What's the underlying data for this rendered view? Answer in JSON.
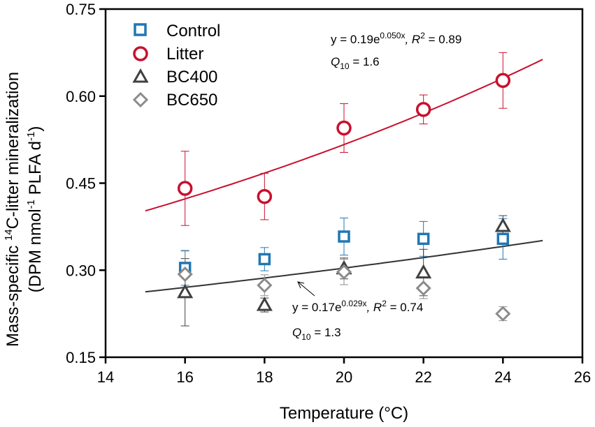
{
  "chart_data": {
    "type": "scatter",
    "xlabel": "Temperature (°C)",
    "ylabel_line1_pre": "Mass-specific ",
    "ylabel_line1_sup": "14",
    "ylabel_line1_post": "C-litter mineralization",
    "ylabel_line2_pre": "(DPM nmol",
    "ylabel_line2_sup1": "-1",
    "ylabel_line2_mid": " PLFA d",
    "ylabel_line2_sup2": "-1",
    "ylabel_line2_post": ")",
    "xlim": [
      14,
      26
    ],
    "ylim": [
      0.15,
      0.75
    ],
    "xticks": [
      14,
      16,
      18,
      20,
      22,
      24,
      26
    ],
    "yticks": [
      0.15,
      0.3,
      0.45,
      0.6,
      0.75
    ],
    "xtick_labels": [
      "14",
      "16",
      "18",
      "20",
      "22",
      "24",
      "26"
    ],
    "ytick_labels": [
      "0.15",
      "0.30",
      "0.45",
      "0.60",
      "0.75"
    ],
    "series": [
      {
        "name": "Control",
        "marker": "square",
        "color": "#1f77b4",
        "points": [
          {
            "x": 16,
            "y": 0.304,
            "err": 0.03
          },
          {
            "x": 18,
            "y": 0.319,
            "err": 0.02
          },
          {
            "x": 20,
            "y": 0.358,
            "err": 0.032
          },
          {
            "x": 22,
            "y": 0.354,
            "err": 0.03
          },
          {
            "x": 24,
            "y": 0.354,
            "err": 0.035
          }
        ]
      },
      {
        "name": "Litter",
        "marker": "circle",
        "color": "#c8102e",
        "points": [
          {
            "x": 16,
            "y": 0.441,
            "err": 0.064
          },
          {
            "x": 18,
            "y": 0.427,
            "err": 0.04
          },
          {
            "x": 20,
            "y": 0.545,
            "err": 0.042
          },
          {
            "x": 22,
            "y": 0.577,
            "err": 0.025
          },
          {
            "x": 24,
            "y": 0.627,
            "err": 0.048
          }
        ]
      },
      {
        "name": "BC400",
        "marker": "triangle",
        "color": "#404040",
        "points": [
          {
            "x": 16,
            "y": 0.262,
            "err": 0.058
          },
          {
            "x": 18,
            "y": 0.24,
            "err": 0.012
          },
          {
            "x": 20,
            "y": 0.303,
            "err": 0.018
          },
          {
            "x": 22,
            "y": 0.296,
            "err": 0.04
          },
          {
            "x": 24,
            "y": 0.376,
            "err": 0.018
          }
        ]
      },
      {
        "name": "BC650",
        "marker": "diamond",
        "color": "#8c8c8c",
        "points": [
          {
            "x": 16,
            "y": 0.293,
            "err": 0.04
          },
          {
            "x": 18,
            "y": 0.274,
            "err": 0.018
          },
          {
            "x": 20,
            "y": 0.297,
            "err": 0.022
          },
          {
            "x": 22,
            "y": 0.269,
            "err": 0.018
          },
          {
            "x": 24,
            "y": 0.225,
            "err": 0.012
          }
        ]
      }
    ],
    "fits": [
      {
        "name": "Litter fit",
        "color": "#c8102e",
        "a": 0.19,
        "b": 0.05,
        "x_range": [
          15,
          25
        ]
      },
      {
        "name": "Black-carbon fit",
        "color": "#333333",
        "a": 0.17,
        "b": 0.029,
        "x_range": [
          15,
          25
        ]
      }
    ],
    "annotations": {
      "litter_eq_pre": "y = 0.19e",
      "litter_eq_sup": "0.050x",
      "litter_eq_r": ", R",
      "litter_eq_r2sup": "2",
      "litter_eq_val": " = 0.89",
      "litter_q10_pre": "Q",
      "litter_q10_sub": "10",
      "litter_q10_val": " = 1.6",
      "bc_eq_pre": "y = 0.17e",
      "bc_eq_sup": "0.029x",
      "bc_eq_r": ", R",
      "bc_eq_r2sup": "2",
      "bc_eq_val": " = 0.74",
      "bc_q10_pre": "Q",
      "bc_q10_sub": "10",
      "bc_q10_val": " = 1.3"
    },
    "legend_position": "top-left"
  }
}
